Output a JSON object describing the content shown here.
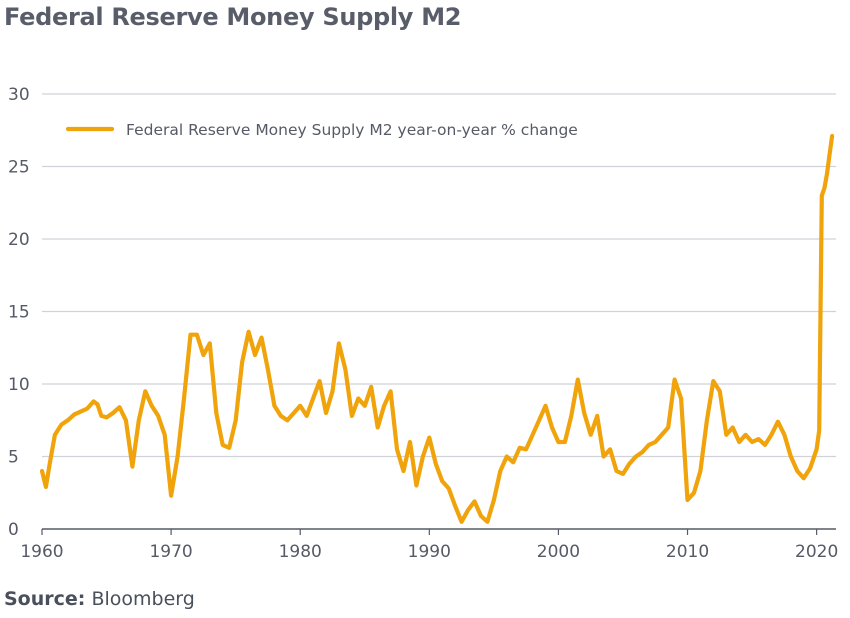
{
  "page": {
    "title": "Federal Reserve Money Supply M2",
    "source_label": "Source:",
    "source_value": "Bloomberg"
  },
  "colors": {
    "series": "#f0a30a",
    "grid": "#cfd2d8",
    "axis": "#555a66"
  },
  "chart_data": {
    "type": "line",
    "title": "Federal Reserve Money Supply M2",
    "xlabel": "",
    "ylabel": "",
    "xlim": [
      1960,
      2021.5
    ],
    "ylim": [
      0,
      30
    ],
    "xticks": [
      1960,
      1970,
      1980,
      1990,
      2000,
      2010,
      2020
    ],
    "yticks": [
      0,
      5,
      10,
      15,
      20,
      25,
      30
    ],
    "grid": "horizontal",
    "legend": "top-left",
    "series": [
      {
        "name": "Federal Reserve Money Supply M2 year-on-year % change",
        "color": "#f0a30a",
        "x": [
          1960,
          1960.3,
          1960.6,
          1961,
          1961.5,
          1962,
          1962.5,
          1963,
          1963.5,
          1964,
          1964.3,
          1964.6,
          1965,
          1965.5,
          1966,
          1966.5,
          1967,
          1967.5,
          1968,
          1968.5,
          1969,
          1969.5,
          1970,
          1970.5,
          1971,
          1971.5,
          1972,
          1972.5,
          1973,
          1973.5,
          1974,
          1974.5,
          1975,
          1975.5,
          1976,
          1976.5,
          1977,
          1977.5,
          1978,
          1978.5,
          1979,
          1979.5,
          1980,
          1980.5,
          1981,
          1981.5,
          1982,
          1982.5,
          1983,
          1983.5,
          1984,
          1984.5,
          1985,
          1985.5,
          1986,
          1986.5,
          1987,
          1987.5,
          1988,
          1988.5,
          1989,
          1989.5,
          1990,
          1990.5,
          1991,
          1991.5,
          1992,
          1992.5,
          1993,
          1993.5,
          1994,
          1994.5,
          1995,
          1995.5,
          1996,
          1996.5,
          1997,
          1997.5,
          1998,
          1998.5,
          1999,
          1999.5,
          2000,
          2000.5,
          2001,
          2001.5,
          2002,
          2002.5,
          2003,
          2003.5,
          2004,
          2004.5,
          2005,
          2005.5,
          2006,
          2006.5,
          2007,
          2007.5,
          2008,
          2008.5,
          2009,
          2009.5,
          2010,
          2010.5,
          2011,
          2011.5,
          2012,
          2012.5,
          2013,
          2013.5,
          2014,
          2014.5,
          2015,
          2015.5,
          2016,
          2016.5,
          2017,
          2017.5,
          2018,
          2018.5,
          2019,
          2019.5,
          2020,
          2020.2,
          2020.4,
          2020.6,
          2020.8,
          2021,
          2021.2
        ],
        "values": [
          4.0,
          2.9,
          4.5,
          6.5,
          7.2,
          7.5,
          7.9,
          8.1,
          8.3,
          8.8,
          8.6,
          7.8,
          7.7,
          8.0,
          8.4,
          7.5,
          4.3,
          7.5,
          9.5,
          8.5,
          7.8,
          6.5,
          2.3,
          5.0,
          9.0,
          13.4,
          13.4,
          12.0,
          12.8,
          8.0,
          5.8,
          5.6,
          7.5,
          11.5,
          13.6,
          12.0,
          13.2,
          11.0,
          8.5,
          7.8,
          7.5,
          8.0,
          8.5,
          7.8,
          9.0,
          10.2,
          8.0,
          9.5,
          12.8,
          11.0,
          7.8,
          9.0,
          8.5,
          9.8,
          7.0,
          8.5,
          9.5,
          5.5,
          4.0,
          6.0,
          3.0,
          5.0,
          6.3,
          4.5,
          3.3,
          2.8,
          1.6,
          0.5,
          1.3,
          1.9,
          0.9,
          0.5,
          2.0,
          4.0,
          5.0,
          4.6,
          5.6,
          5.5,
          6.5,
          7.5,
          8.5,
          7.0,
          6.0,
          6.0,
          7.8,
          10.3,
          8.0,
          6.5,
          7.8,
          5.0,
          5.5,
          4.0,
          3.8,
          4.5,
          5.0,
          5.3,
          5.8,
          6.0,
          6.5,
          7.0,
          10.3,
          9.0,
          2.0,
          2.5,
          4.0,
          7.5,
          10.2,
          9.5,
          6.5,
          7.0,
          6.0,
          6.5,
          6.0,
          6.2,
          5.8,
          6.5,
          7.4,
          6.5,
          5.0,
          4.0,
          3.5,
          4.2,
          5.5,
          6.8,
          23.0,
          23.5,
          24.5,
          25.8,
          27.1
        ]
      }
    ]
  }
}
